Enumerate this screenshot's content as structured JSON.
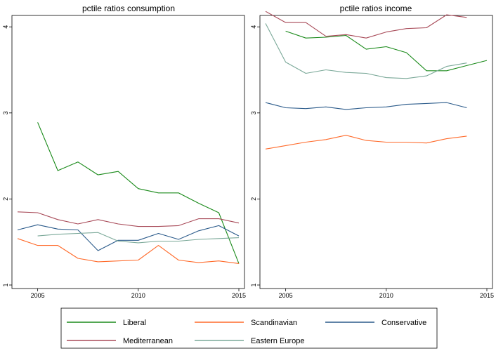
{
  "colors": {
    "Liberal": "#1a8a1a",
    "Scandinavian": "#ff6a2a",
    "Conservative": "#2a5a8a",
    "Mediterranean": "#a84a58",
    "Eastern Europe": "#7aa898"
  },
  "legend": {
    "items": [
      "Liberal",
      "Scandinavian",
      "Conservative",
      "Mediterranean",
      "Eastern Europe"
    ]
  },
  "chart_data": [
    {
      "type": "line",
      "title": "pctile ratios consumption",
      "xlim": [
        2004,
        2015
      ],
      "ylim": [
        1,
        4.1
      ],
      "xticks": [
        2005,
        2010,
        2015
      ],
      "yticks": [
        1,
        2,
        3,
        4
      ],
      "grid": false,
      "legend_position": "bottom",
      "series": [
        {
          "name": "Liberal",
          "x": [
            2005,
            2006,
            2007,
            2008,
            2009,
            2010,
            2011,
            2012,
            2013,
            2014,
            2015
          ],
          "y": [
            2.89,
            2.33,
            2.43,
            2.28,
            2.32,
            2.12,
            2.07,
            2.07,
            1.95,
            1.84,
            1.25
          ]
        },
        {
          "name": "Scandinavian",
          "x": [
            2004,
            2005,
            2006,
            2007,
            2008,
            2009,
            2010,
            2011,
            2012,
            2013,
            2014,
            2015
          ],
          "y": [
            1.54,
            1.46,
            1.46,
            1.31,
            1.27,
            1.28,
            1.29,
            1.46,
            1.29,
            1.26,
            1.28,
            1.25
          ]
        },
        {
          "name": "Conservative",
          "x": [
            2004,
            2005,
            2006,
            2007,
            2008,
            2009,
            2010,
            2011,
            2012,
            2013,
            2014,
            2015
          ],
          "y": [
            1.64,
            1.7,
            1.65,
            1.64,
            1.4,
            1.52,
            1.52,
            1.6,
            1.53,
            1.63,
            1.69,
            1.57
          ]
        },
        {
          "name": "Mediterranean",
          "x": [
            2004,
            2005,
            2006,
            2007,
            2008,
            2009,
            2010,
            2011,
            2012,
            2013,
            2014,
            2015
          ],
          "y": [
            1.85,
            1.84,
            1.76,
            1.71,
            1.76,
            1.71,
            1.68,
            1.68,
            1.69,
            1.77,
            1.77,
            1.72
          ]
        },
        {
          "name": "Eastern Europe",
          "x": [
            2005,
            2006,
            2007,
            2008,
            2009,
            2010,
            2011,
            2012,
            2013,
            2014,
            2015
          ],
          "y": [
            1.57,
            1.59,
            1.6,
            1.61,
            1.51,
            1.49,
            1.51,
            1.51,
            1.53,
            1.54,
            1.55
          ]
        }
      ]
    },
    {
      "type": "line",
      "title": "pctile ratios income",
      "xlim": [
        2004,
        2015
      ],
      "ylim": [
        1,
        4.1
      ],
      "xticks": [
        2005,
        2010,
        2015
      ],
      "yticks": [
        1,
        2,
        3,
        4
      ],
      "grid": false,
      "legend_position": "bottom",
      "series": [
        {
          "name": "Liberal",
          "x": [
            2005,
            2006,
            2007,
            2008,
            2009,
            2010,
            2011,
            2012,
            2013,
            2014,
            2015
          ],
          "y": [
            3.95,
            3.87,
            3.88,
            3.9,
            3.74,
            3.77,
            3.7,
            3.49,
            3.49,
            3.55,
            3.61
          ]
        },
        {
          "name": "Scandinavian",
          "x": [
            2004,
            2005,
            2006,
            2007,
            2008,
            2009,
            2010,
            2011,
            2012,
            2013,
            2014
          ],
          "y": [
            2.58,
            2.62,
            2.66,
            2.69,
            2.74,
            2.68,
            2.66,
            2.66,
            2.65,
            2.7,
            2.73
          ]
        },
        {
          "name": "Conservative",
          "x": [
            2004,
            2005,
            2006,
            2007,
            2008,
            2009,
            2010,
            2011,
            2012,
            2013,
            2014
          ],
          "y": [
            3.12,
            3.06,
            3.05,
            3.07,
            3.04,
            3.06,
            3.07,
            3.1,
            3.11,
            3.12,
            3.06
          ]
        },
        {
          "name": "Mediterranean",
          "x": [
            2004,
            2005,
            2006,
            2007,
            2008,
            2009,
            2010,
            2011,
            2012,
            2013,
            2014
          ],
          "y": [
            4.18,
            4.05,
            4.05,
            3.89,
            3.91,
            3.87,
            3.94,
            3.98,
            3.99,
            4.14,
            4.11
          ]
        },
        {
          "name": "Eastern Europe",
          "x": [
            2004,
            2005,
            2006,
            2007,
            2008,
            2009,
            2010,
            2011,
            2012,
            2013,
            2014
          ],
          "y": [
            4.04,
            3.59,
            3.46,
            3.5,
            3.47,
            3.46,
            3.41,
            3.4,
            3.43,
            3.54,
            3.58
          ]
        }
      ]
    }
  ]
}
